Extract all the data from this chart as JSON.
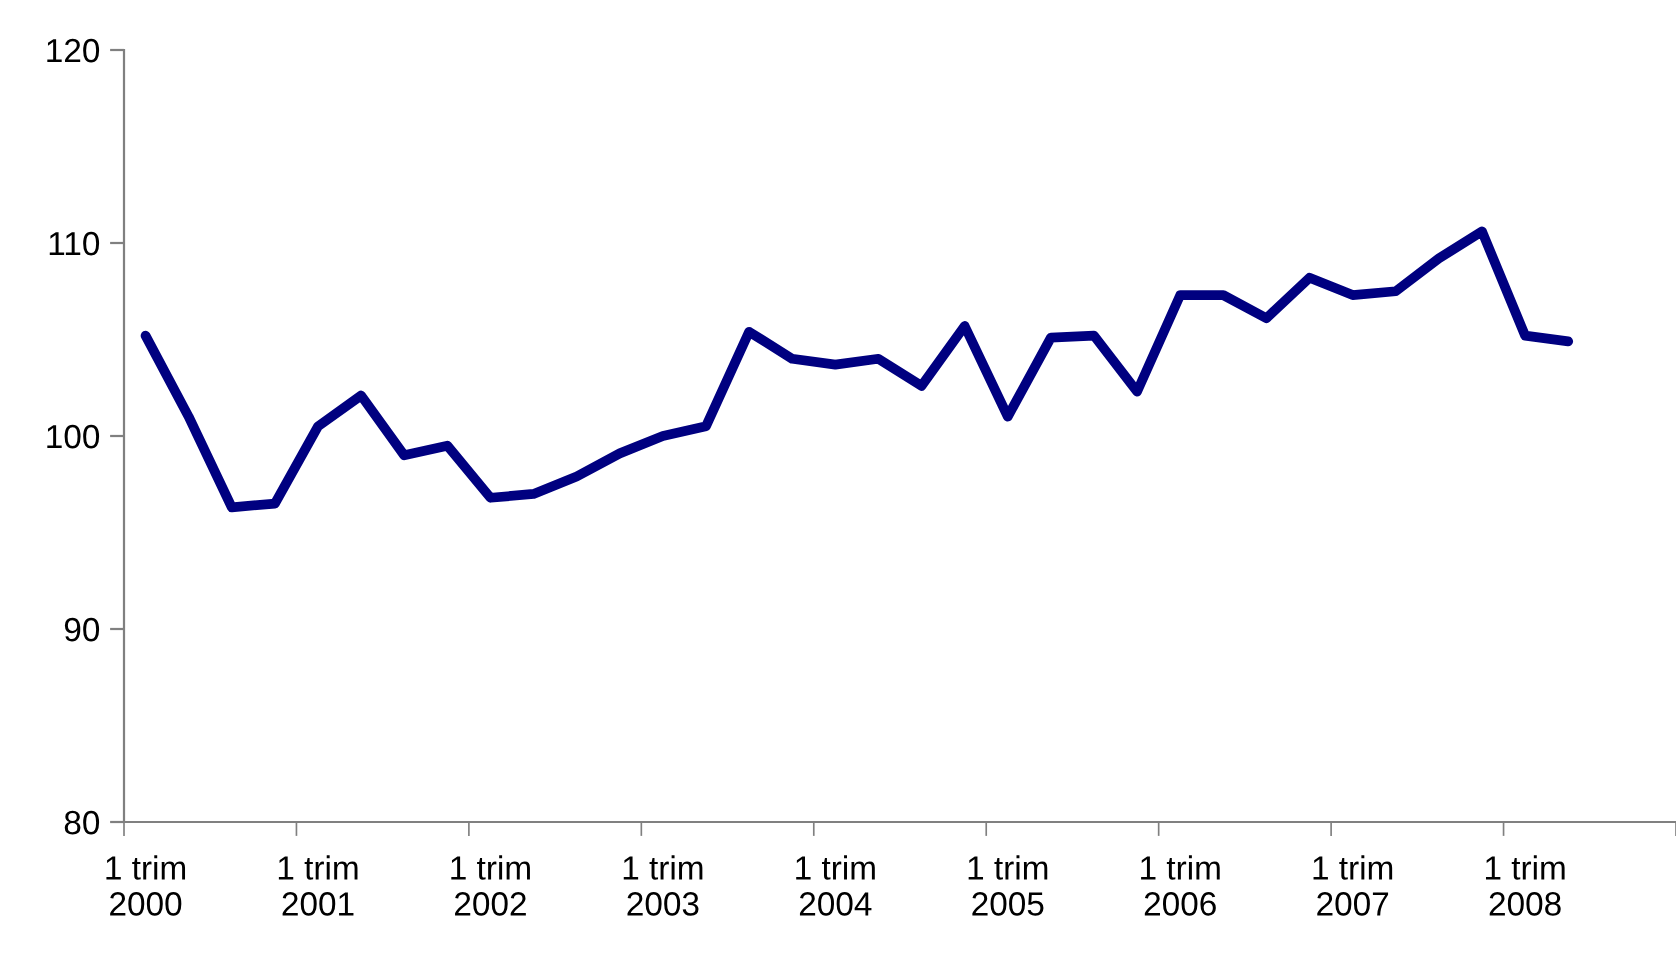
{
  "chart_data": {
    "type": "line",
    "categories": [
      "1 trim\n2000",
      null,
      null,
      null,
      "1 trim\n2001",
      null,
      null,
      null,
      "1 trim\n2002",
      null,
      null,
      null,
      "1 trim\n2003",
      null,
      null,
      null,
      "1 trim\n2004",
      null,
      null,
      null,
      "1 trim\n2005",
      null,
      null,
      null,
      "1 trim\n2006",
      null,
      null,
      null,
      "1 trim\n2007",
      null,
      null,
      null,
      "1 trim\n2008",
      null,
      null,
      null
    ],
    "series": [
      {
        "color": "#000080",
        "values": [
          105.2,
          101.0,
          96.3,
          96.5,
          100.5,
          102.1,
          99.0,
          99.5,
          96.8,
          97.0,
          97.9,
          99.1,
          100.0,
          100.5,
          105.4,
          104.0,
          103.7,
          104.0,
          102.6,
          105.7,
          101.0,
          105.1,
          105.2,
          102.3,
          107.3,
          107.3,
          106.1,
          108.2,
          107.3,
          107.5,
          109.2,
          110.6,
          105.2,
          104.9,
          null,
          null
        ]
      }
    ],
    "ylim": [
      80,
      120
    ],
    "yticks": [
      80,
      90,
      100,
      110,
      120
    ],
    "grid": false,
    "legend": false,
    "marker": "none",
    "line_style": "solid"
  }
}
